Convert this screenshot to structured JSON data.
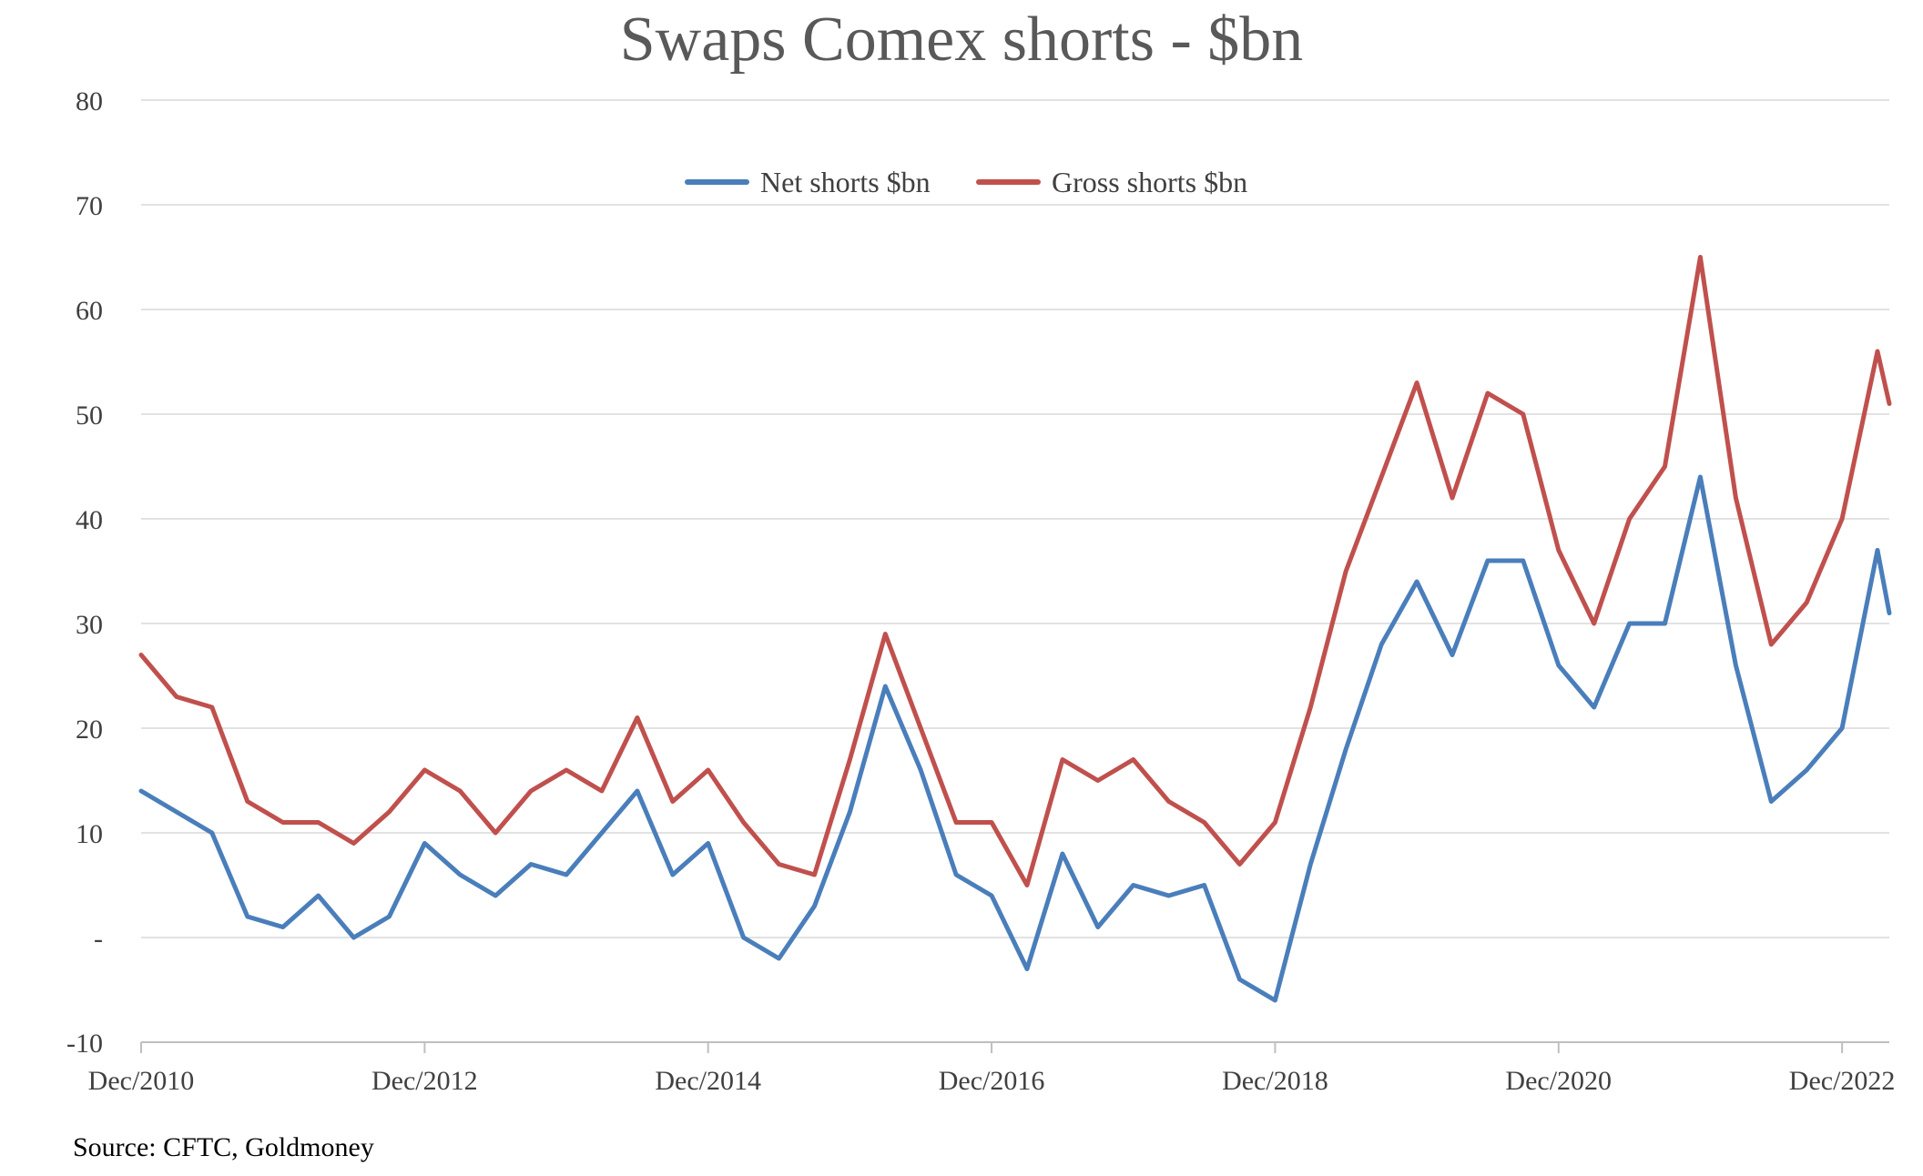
{
  "chart_data": {
    "type": "line",
    "title": "Swaps Comex shorts - $bn",
    "xlabel": "",
    "ylabel": "",
    "ylim": [
      -10,
      80
    ],
    "yticks": [
      {
        "value": 80,
        "label": "80"
      },
      {
        "value": 70,
        "label": "70"
      },
      {
        "value": 60,
        "label": "60"
      },
      {
        "value": 50,
        "label": "50"
      },
      {
        "value": 40,
        "label": "40"
      },
      {
        "value": 30,
        "label": "30"
      },
      {
        "value": 20,
        "label": "20"
      },
      {
        "value": 10,
        "label": "10"
      },
      {
        "value": 0,
        "label": "-"
      },
      {
        "value": -10,
        "label": "-10"
      }
    ],
    "xlim": [
      "2010-12",
      "2023-04"
    ],
    "xticks": [
      "Dec/2010",
      "Dec/2012",
      "Dec/2014",
      "Dec/2016",
      "Dec/2018",
      "Dec/2020",
      "Dec/2022"
    ],
    "grid": true,
    "legend_position": "top-center",
    "x": [
      "2010-12",
      "2011-03",
      "2011-06",
      "2011-09",
      "2011-12",
      "2012-03",
      "2012-06",
      "2012-09",
      "2012-12",
      "2013-03",
      "2013-06",
      "2013-09",
      "2013-12",
      "2014-03",
      "2014-06",
      "2014-09",
      "2014-12",
      "2015-03",
      "2015-06",
      "2015-09",
      "2015-12",
      "2016-03",
      "2016-06",
      "2016-09",
      "2016-12",
      "2017-03",
      "2017-06",
      "2017-09",
      "2017-12",
      "2018-03",
      "2018-06",
      "2018-09",
      "2018-12",
      "2019-03",
      "2019-06",
      "2019-09",
      "2019-12",
      "2020-03",
      "2020-06",
      "2020-09",
      "2020-12",
      "2021-03",
      "2021-06",
      "2021-09",
      "2021-12",
      "2022-03",
      "2022-06",
      "2022-09",
      "2022-12",
      "2023-03",
      "2023-04"
    ],
    "series": [
      {
        "name": "Net shorts $bn",
        "color": "#4a7ebb",
        "values": [
          14,
          12,
          10,
          2,
          1,
          4,
          0,
          2,
          9,
          6,
          4,
          7,
          6,
          10,
          14,
          6,
          9,
          0,
          -2,
          3,
          12,
          24,
          16,
          6,
          4,
          -3,
          8,
          1,
          5,
          4,
          5,
          -4,
          -6,
          7,
          18,
          28,
          34,
          27,
          36,
          36,
          26,
          22,
          30,
          30,
          44,
          26,
          13,
          16,
          20,
          37,
          31
        ]
      },
      {
        "name": "Gross shorts $bn",
        "color": "#c0504d",
        "values": [
          27,
          23,
          22,
          13,
          11,
          11,
          9,
          12,
          16,
          14,
          10,
          14,
          16,
          14,
          21,
          13,
          16,
          11,
          7,
          6,
          17,
          29,
          20,
          11,
          11,
          5,
          17,
          15,
          17,
          13,
          11,
          7,
          11,
          22,
          35,
          44,
          53,
          42,
          52,
          50,
          37,
          30,
          40,
          45,
          65,
          42,
          28,
          32,
          40,
          56,
          51
        ]
      }
    ]
  },
  "source": "Source: CFTC, Goldmoney"
}
